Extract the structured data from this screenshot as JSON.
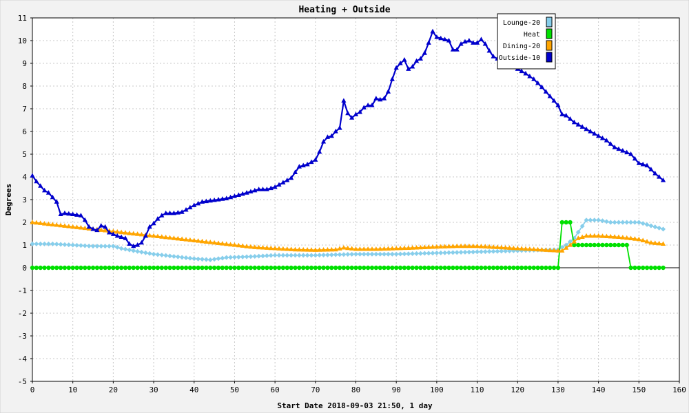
{
  "chart_data": {
    "type": "line",
    "title": "Heating + Outside",
    "xlabel": "Start Date 2018-09-03 21:50, 1 day",
    "ylabel": "Degrees",
    "xlim": [
      0,
      160
    ],
    "ylim": [
      -5,
      11
    ],
    "x_ticks": [
      0,
      10,
      20,
      30,
      40,
      50,
      60,
      70,
      80,
      90,
      100,
      110,
      120,
      130,
      140,
      150,
      160
    ],
    "y_ticks": [
      -5,
      -4,
      -3,
      -2,
      -1,
      0,
      1,
      2,
      3,
      4,
      5,
      6,
      7,
      8,
      9,
      10,
      11
    ],
    "grid": true,
    "legend_position": "top-right",
    "series": [
      {
        "name": "Lounge-20",
        "color": "#87ceeb",
        "marker": "diamond",
        "points": [
          [
            0,
            1.05
          ],
          [
            5,
            1.05
          ],
          [
            10,
            1.0
          ],
          [
            15,
            0.95
          ],
          [
            20,
            0.95
          ],
          [
            22,
            0.85
          ],
          [
            25,
            0.75
          ],
          [
            30,
            0.6
          ],
          [
            35,
            0.5
          ],
          [
            40,
            0.4
          ],
          [
            44,
            0.35
          ],
          [
            46,
            0.4
          ],
          [
            48,
            0.45
          ],
          [
            55,
            0.5
          ],
          [
            60,
            0.55
          ],
          [
            70,
            0.55
          ],
          [
            80,
            0.6
          ],
          [
            90,
            0.6
          ],
          [
            100,
            0.65
          ],
          [
            110,
            0.7
          ],
          [
            120,
            0.75
          ],
          [
            125,
            0.78
          ],
          [
            130,
            0.8
          ],
          [
            132,
            1.0
          ],
          [
            134,
            1.3
          ],
          [
            137,
            2.1
          ],
          [
            140,
            2.1
          ],
          [
            143,
            2.0
          ],
          [
            145,
            2.0
          ],
          [
            150,
            2.0
          ],
          [
            153,
            1.85
          ],
          [
            156,
            1.7
          ]
        ]
      },
      {
        "name": "Heat",
        "color": "#00e000",
        "marker": "circle",
        "points": [
          [
            0,
            0
          ],
          [
            130,
            0
          ],
          [
            131,
            2
          ],
          [
            133,
            2
          ],
          [
            134,
            1
          ],
          [
            147,
            1
          ],
          [
            148,
            0
          ],
          [
            156,
            0
          ]
        ]
      },
      {
        "name": "Dining-20",
        "color": "#ffa500",
        "marker": "triangle",
        "points": [
          [
            0,
            2.0
          ],
          [
            5,
            1.9
          ],
          [
            10,
            1.8
          ],
          [
            15,
            1.7
          ],
          [
            20,
            1.6
          ],
          [
            25,
            1.5
          ],
          [
            30,
            1.4
          ],
          [
            35,
            1.3
          ],
          [
            40,
            1.2
          ],
          [
            45,
            1.1
          ],
          [
            50,
            1.0
          ],
          [
            55,
            0.9
          ],
          [
            60,
            0.85
          ],
          [
            65,
            0.8
          ],
          [
            70,
            0.78
          ],
          [
            75,
            0.8
          ],
          [
            77,
            0.88
          ],
          [
            80,
            0.82
          ],
          [
            85,
            0.82
          ],
          [
            90,
            0.85
          ],
          [
            95,
            0.88
          ],
          [
            100,
            0.92
          ],
          [
            105,
            0.95
          ],
          [
            110,
            0.95
          ],
          [
            115,
            0.9
          ],
          [
            120,
            0.85
          ],
          [
            125,
            0.8
          ],
          [
            130,
            0.75
          ],
          [
            131,
            0.75
          ],
          [
            133,
            1.0
          ],
          [
            135,
            1.3
          ],
          [
            137,
            1.4
          ],
          [
            140,
            1.4
          ],
          [
            145,
            1.35
          ],
          [
            150,
            1.25
          ],
          [
            153,
            1.1
          ],
          [
            156,
            1.05
          ]
        ]
      },
      {
        "name": "Outside-10",
        "color": "#0000cc",
        "marker": "triangle",
        "points": [
          [
            0,
            4.05
          ],
          [
            1,
            3.8
          ],
          [
            2,
            3.6
          ],
          [
            3,
            3.4
          ],
          [
            4,
            3.3
          ],
          [
            5,
            3.1
          ],
          [
            6,
            2.9
          ],
          [
            7,
            2.35
          ],
          [
            8,
            2.4
          ],
          [
            10,
            2.35
          ],
          [
            12,
            2.3
          ],
          [
            13,
            2.1
          ],
          [
            14,
            1.8
          ],
          [
            15,
            1.7
          ],
          [
            16,
            1.65
          ],
          [
            17,
            1.85
          ],
          [
            18,
            1.8
          ],
          [
            19,
            1.55
          ],
          [
            21,
            1.4
          ],
          [
            22,
            1.35
          ],
          [
            23,
            1.3
          ],
          [
            24,
            1.05
          ],
          [
            25,
            0.95
          ],
          [
            26,
            1.0
          ],
          [
            27,
            1.1
          ],
          [
            28,
            1.4
          ],
          [
            29,
            1.8
          ],
          [
            30,
            1.95
          ],
          [
            31,
            2.15
          ],
          [
            32,
            2.3
          ],
          [
            33,
            2.4
          ],
          [
            35,
            2.4
          ],
          [
            37,
            2.45
          ],
          [
            38,
            2.55
          ],
          [
            40,
            2.75
          ],
          [
            42,
            2.9
          ],
          [
            44,
            2.95
          ],
          [
            46,
            3.0
          ],
          [
            48,
            3.05
          ],
          [
            50,
            3.15
          ],
          [
            52,
            3.25
          ],
          [
            54,
            3.35
          ],
          [
            56,
            3.45
          ],
          [
            58,
            3.45
          ],
          [
            60,
            3.55
          ],
          [
            62,
            3.75
          ],
          [
            64,
            3.95
          ],
          [
            65,
            4.2
          ],
          [
            66,
            4.45
          ],
          [
            68,
            4.55
          ],
          [
            70,
            4.75
          ],
          [
            71,
            5.1
          ],
          [
            72,
            5.55
          ],
          [
            73,
            5.75
          ],
          [
            74,
            5.8
          ],
          [
            75,
            6.0
          ],
          [
            76,
            6.15
          ],
          [
            77,
            7.35
          ],
          [
            78,
            6.8
          ],
          [
            79,
            6.6
          ],
          [
            80,
            6.75
          ],
          [
            81,
            6.85
          ],
          [
            82,
            7.05
          ],
          [
            83,
            7.15
          ],
          [
            84,
            7.15
          ],
          [
            85,
            7.45
          ],
          [
            86,
            7.4
          ],
          [
            87,
            7.45
          ],
          [
            88,
            7.75
          ],
          [
            89,
            8.3
          ],
          [
            90,
            8.8
          ],
          [
            91,
            9.0
          ],
          [
            92,
            9.15
          ],
          [
            93,
            8.75
          ],
          [
            94,
            8.85
          ],
          [
            95,
            9.1
          ],
          [
            96,
            9.2
          ],
          [
            97,
            9.45
          ],
          [
            98,
            9.9
          ],
          [
            99,
            10.4
          ],
          [
            100,
            10.15
          ],
          [
            101,
            10.1
          ],
          [
            102,
            10.05
          ],
          [
            103,
            10.0
          ],
          [
            104,
            9.6
          ],
          [
            105,
            9.6
          ],
          [
            106,
            9.85
          ],
          [
            107,
            9.95
          ],
          [
            108,
            10.0
          ],
          [
            109,
            9.9
          ],
          [
            110,
            9.9
          ],
          [
            111,
            10.05
          ],
          [
            112,
            9.85
          ],
          [
            113,
            9.55
          ],
          [
            114,
            9.3
          ],
          [
            116,
            9.1
          ],
          [
            118,
            8.95
          ],
          [
            120,
            8.75
          ],
          [
            122,
            8.55
          ],
          [
            124,
            8.3
          ],
          [
            126,
            7.95
          ],
          [
            128,
            7.55
          ],
          [
            130,
            7.15
          ],
          [
            131,
            6.75
          ],
          [
            132,
            6.7
          ],
          [
            134,
            6.4
          ],
          [
            136,
            6.2
          ],
          [
            138,
            6.0
          ],
          [
            140,
            5.8
          ],
          [
            142,
            5.6
          ],
          [
            144,
            5.3
          ],
          [
            146,
            5.15
          ],
          [
            148,
            5.0
          ],
          [
            150,
            4.6
          ],
          [
            152,
            4.5
          ],
          [
            154,
            4.15
          ],
          [
            156,
            3.85
          ]
        ]
      }
    ]
  }
}
